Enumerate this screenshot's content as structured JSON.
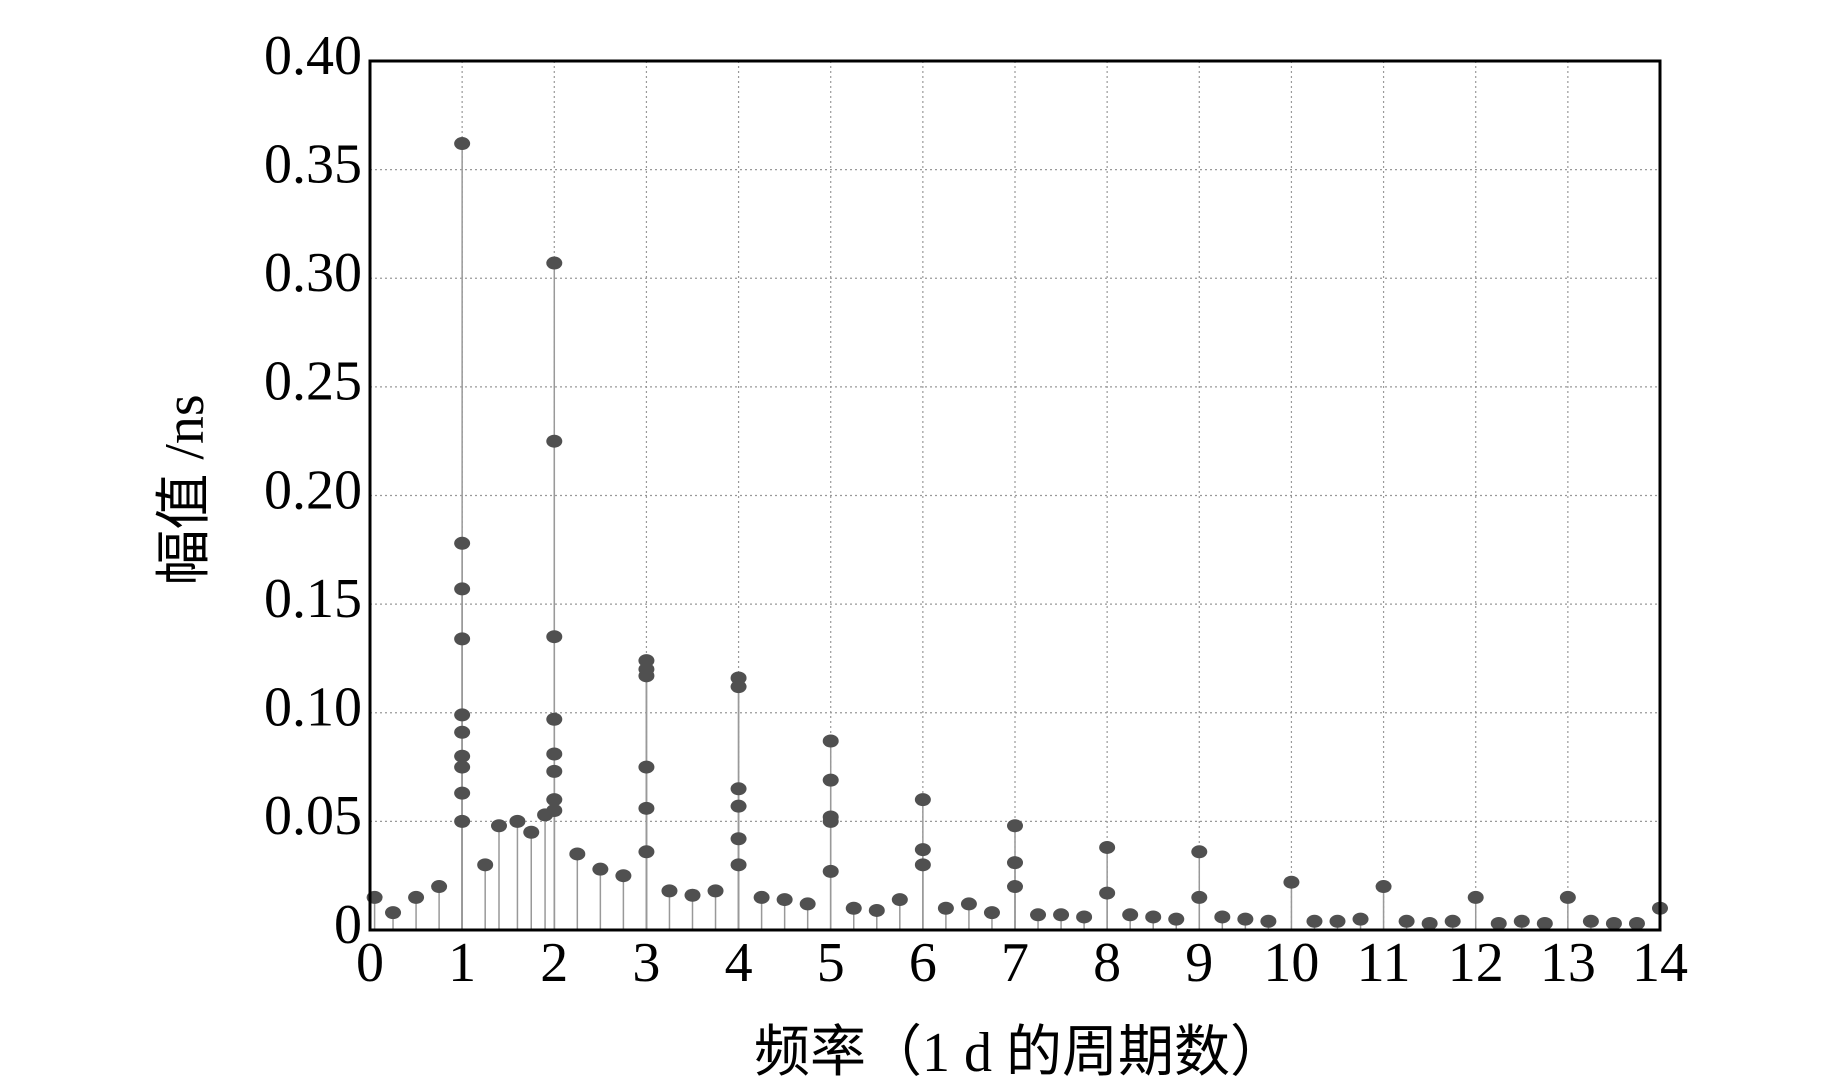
{
  "chart_data": {
    "type": "stem",
    "xlabel": "频率（1 d 的周期数）",
    "ylabel": "幅值 /ns",
    "xlim": [
      0,
      14
    ],
    "xticks": [
      0,
      1,
      2,
      3,
      4,
      5,
      6,
      7,
      8,
      9,
      10,
      11,
      12,
      13,
      14
    ],
    "ylim": [
      0,
      0.4
    ],
    "yticks": [
      0,
      0.05,
      {
        "value": 0.1,
        "label": "0.10"
      },
      0.15,
      {
        "value": 0.2,
        "label": "0.20"
      },
      0.25,
      {
        "value": 0.3,
        "label": "0.30"
      },
      0.35,
      {
        "value": 0.4,
        "label": "0.40"
      }
    ],
    "grid": true,
    "color": "#505050",
    "stem_color": "#999999",
    "x": [
      0.05,
      0.25,
      0.5,
      0.75,
      1.25,
      1.4,
      1.6,
      1.75,
      1.9,
      2.25,
      2.5,
      2.75,
      3.25,
      3.5,
      3.75,
      4.25,
      4.5,
      4.75,
      5.25,
      5.5,
      5.75,
      6.25,
      6.5,
      6.75,
      7.25,
      7.5,
      7.75,
      8.25,
      8.5,
      8.75,
      9.25,
      9.5,
      9.75,
      10.25,
      10.5,
      10.75,
      11.25,
      11.5,
      11.75,
      12.25,
      12.5,
      12.75,
      13.25,
      13.5,
      13.75,
      14,
      1,
      1,
      1,
      1,
      1,
      1,
      1,
      1,
      1,
      1,
      2,
      2,
      2,
      2,
      2,
      2,
      2,
      2,
      3,
      3,
      3,
      3,
      3,
      3,
      4,
      4,
      4,
      4,
      4,
      4,
      5,
      5,
      5,
      5,
      5,
      6,
      6,
      6,
      7,
      7,
      7,
      8,
      8,
      9,
      9,
      10,
      11,
      12,
      13
    ],
    "y": [
      0.015,
      0.008,
      0.015,
      0.02,
      0.03,
      0.048,
      0.05,
      0.045,
      0.053,
      0.035,
      0.028,
      0.025,
      0.018,
      0.016,
      0.018,
      0.015,
      0.014,
      0.012,
      0.01,
      0.009,
      0.014,
      0.01,
      0.012,
      0.008,
      0.007,
      0.007,
      0.006,
      0.007,
      0.006,
      0.005,
      0.006,
      0.005,
      0.004,
      0.004,
      0.004,
      0.005,
      0.004,
      0.003,
      0.004,
      0.003,
      0.004,
      0.003,
      0.004,
      0.003,
      0.003,
      0.01,
      0.362,
      0.178,
      0.157,
      0.134,
      0.099,
      0.091,
      0.08,
      0.075,
      0.063,
      0.05,
      0.307,
      0.225,
      0.135,
      0.097,
      0.081,
      0.073,
      0.06,
      0.055,
      0.124,
      0.12,
      0.117,
      0.075,
      0.056,
      0.036,
      0.116,
      0.112,
      0.065,
      0.057,
      0.042,
      0.03,
      0.087,
      0.069,
      0.052,
      0.05,
      0.027,
      0.06,
      0.037,
      0.03,
      0.048,
      0.031,
      0.02,
      0.038,
      0.017,
      0.036,
      0.015,
      0.022,
      0.02,
      0.015,
      0.015
    ]
  }
}
